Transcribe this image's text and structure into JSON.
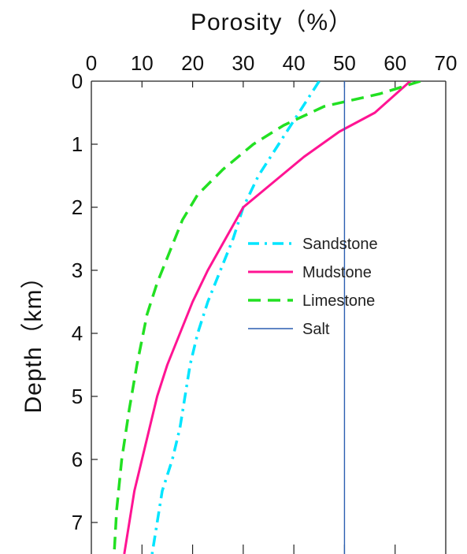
{
  "chart_data": {
    "type": "line",
    "title": "",
    "xlabel": "Porosity（%）",
    "ylabel": "Depth（km）",
    "xlim": [
      0,
      70
    ],
    "ylim": [
      0,
      7.5
    ],
    "x_axis_position": "top",
    "y_axis_inverted": true,
    "x_ticks": [
      0,
      10,
      20,
      30,
      40,
      50,
      60,
      70
    ],
    "y_ticks": [
      0,
      1,
      2,
      3,
      4,
      5,
      6,
      7
    ],
    "grid": false,
    "legend_position": "right-middle",
    "series": [
      {
        "name": "Sandstone",
        "color": "#00e5ff",
        "style": "dash-dot",
        "points": [
          {
            "x": 45,
            "y": 0.0
          },
          {
            "x": 41,
            "y": 0.5
          },
          {
            "x": 37,
            "y": 1.0
          },
          {
            "x": 33,
            "y": 1.5
          },
          {
            "x": 30,
            "y": 2.0
          },
          {
            "x": 28,
            "y": 2.5
          },
          {
            "x": 25.5,
            "y": 3.0
          },
          {
            "x": 23,
            "y": 3.5
          },
          {
            "x": 21,
            "y": 4.0
          },
          {
            "x": 19.5,
            "y": 4.5
          },
          {
            "x": 18.5,
            "y": 5.0
          },
          {
            "x": 17.5,
            "y": 5.5
          },
          {
            "x": 16,
            "y": 6.0
          },
          {
            "x": 14,
            "y": 6.5
          },
          {
            "x": 13,
            "y": 7.0
          },
          {
            "x": 12,
            "y": 7.5
          }
        ]
      },
      {
        "name": "Mudstone",
        "color": "#ff1493",
        "style": "solid",
        "points": [
          {
            "x": 63,
            "y": 0.0
          },
          {
            "x": 56,
            "y": 0.5
          },
          {
            "x": 49,
            "y": 0.8
          },
          {
            "x": 42,
            "y": 1.2
          },
          {
            "x": 36,
            "y": 1.6
          },
          {
            "x": 30,
            "y": 2.0
          },
          {
            "x": 26.5,
            "y": 2.5
          },
          {
            "x": 23,
            "y": 3.0
          },
          {
            "x": 20,
            "y": 3.5
          },
          {
            "x": 17.5,
            "y": 4.0
          },
          {
            "x": 15,
            "y": 4.5
          },
          {
            "x": 13,
            "y": 5.0
          },
          {
            "x": 11.5,
            "y": 5.5
          },
          {
            "x": 10,
            "y": 6.0
          },
          {
            "x": 8.5,
            "y": 6.5
          },
          {
            "x": 7.5,
            "y": 7.0
          },
          {
            "x": 6.5,
            "y": 7.5
          }
        ]
      },
      {
        "name": "Limestone",
        "color": "#22e022",
        "style": "dashed",
        "points": [
          {
            "x": 65,
            "y": 0.0
          },
          {
            "x": 57,
            "y": 0.2
          },
          {
            "x": 46,
            "y": 0.4
          },
          {
            "x": 38,
            "y": 0.7
          },
          {
            "x": 32,
            "y": 1.0
          },
          {
            "x": 26,
            "y": 1.4
          },
          {
            "x": 21,
            "y": 1.8
          },
          {
            "x": 18,
            "y": 2.2
          },
          {
            "x": 15.5,
            "y": 2.7
          },
          {
            "x": 13,
            "y": 3.2
          },
          {
            "x": 11,
            "y": 3.7
          },
          {
            "x": 9,
            "y": 4.5
          },
          {
            "x": 7.5,
            "y": 5.2
          },
          {
            "x": 6,
            "y": 6.0
          },
          {
            "x": 5,
            "y": 6.8
          },
          {
            "x": 4.5,
            "y": 7.5
          }
        ]
      },
      {
        "name": "Salt",
        "color": "#2b5fb0",
        "label_color": "#e8e8e0",
        "style": "solid-thin",
        "points": [
          {
            "x": 50,
            "y": 0.0
          },
          {
            "x": 50,
            "y": 7.5
          }
        ]
      }
    ]
  }
}
